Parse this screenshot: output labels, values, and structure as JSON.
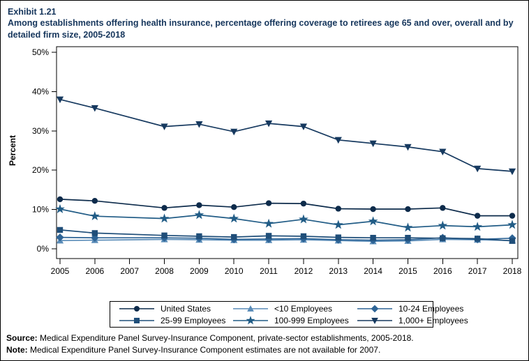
{
  "title": {
    "exhibit": "Exhibit 1.21",
    "text": "Among establishments offering health insurance, percentage offering coverage to retirees age 65 and over, overall and by detailed firm size, 2005-2018"
  },
  "chart_data": {
    "type": "line",
    "x": [
      2005,
      2006,
      2008,
      2009,
      2010,
      2011,
      2012,
      2013,
      2014,
      2015,
      2016,
      2017,
      2018
    ],
    "x_axis_years": [
      2005,
      2006,
      2007,
      2008,
      2009,
      2010,
      2011,
      2012,
      2013,
      2014,
      2015,
      2016,
      2017,
      2018
    ],
    "ylabel": "Percent",
    "ylim": [
      0,
      50
    ],
    "yticks": [
      0,
      10,
      20,
      30,
      40,
      50
    ],
    "ytick_suffix": "%",
    "grid": false,
    "legend_position": "bottom",
    "missing_year": 2007,
    "series": [
      {
        "name": "United States",
        "marker": "circle",
        "color": "#0d2b4b",
        "values": [
          12.6,
          12.2,
          10.4,
          11.1,
          10.6,
          11.6,
          11.5,
          10.2,
          10.1,
          10.1,
          10.4,
          8.4,
          8.4
        ]
      },
      {
        "name": "<10 Employees",
        "marker": "triangle-up",
        "color": "#5a8cb8",
        "values": [
          2.1,
          2.2,
          2.4,
          2.3,
          2.2,
          2.2,
          2.3,
          2.1,
          1.9,
          2.0,
          2.4,
          2.3,
          2.1
        ]
      },
      {
        "name": "10-24 Employees",
        "marker": "diamond",
        "color": "#2e6496",
        "values": [
          2.9,
          2.8,
          2.8,
          2.7,
          2.4,
          2.5,
          2.6,
          2.3,
          2.2,
          2.3,
          2.8,
          2.4,
          2.7
        ]
      },
      {
        "name": "25-99 Employees",
        "marker": "square",
        "color": "#1f4e79",
        "values": [
          4.8,
          4.0,
          3.4,
          3.2,
          3.0,
          3.3,
          3.2,
          2.9,
          2.8,
          2.8,
          2.7,
          2.6,
          2.0
        ]
      },
      {
        "name": "100-999 Employees",
        "marker": "star",
        "color": "#215c86",
        "values": [
          10.1,
          8.3,
          7.7,
          8.6,
          7.7,
          6.4,
          7.5,
          6.1,
          7.0,
          5.4,
          5.9,
          5.6,
          6.1
        ]
      },
      {
        "name": "1,000+ Employees",
        "marker": "triangle-down",
        "color": "#16395f",
        "values": [
          38.0,
          35.8,
          31.1,
          31.7,
          29.8,
          31.9,
          31.1,
          27.7,
          26.8,
          25.9,
          24.7,
          20.4,
          19.7
        ]
      }
    ]
  },
  "notes": {
    "source_label": "Source:",
    "source_text": " Medical Expenditure Panel Survey-Insurance Component, private-sector establishments, 2005-2018.",
    "note_label": "Note:",
    "note_text": " Medical Expenditure Panel Survey-Insurance Component estimates are not available for 2007."
  }
}
